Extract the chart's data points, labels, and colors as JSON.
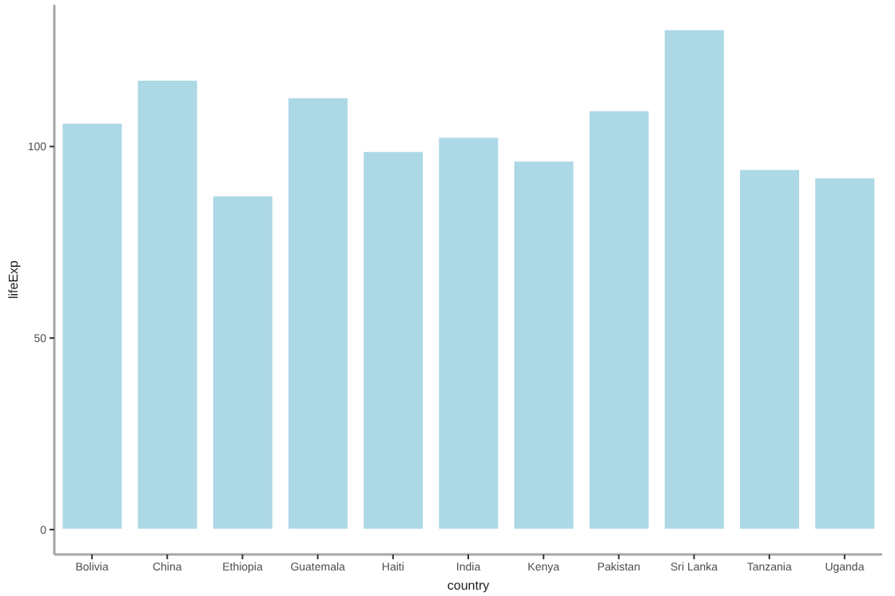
{
  "chart_data": {
    "type": "bar",
    "xlabel": "country",
    "ylabel": "lifeExp",
    "categories": [
      "Bolivia",
      "China",
      "Ethiopia",
      "Guatemala",
      "Haiti",
      "India",
      "Kenya",
      "Pakistan",
      "Sri Lanka",
      "Tanzania",
      "Uganda"
    ],
    "values": [
      106.2,
      117.4,
      87.2,
      112.8,
      98.8,
      102.5,
      96.3,
      109.4,
      130.6,
      94.1,
      91.9
    ],
    "color": "#add8e6",
    "ylim": [
      -6.5,
      137
    ],
    "yticks": [
      0,
      50,
      100
    ],
    "grid": false
  }
}
